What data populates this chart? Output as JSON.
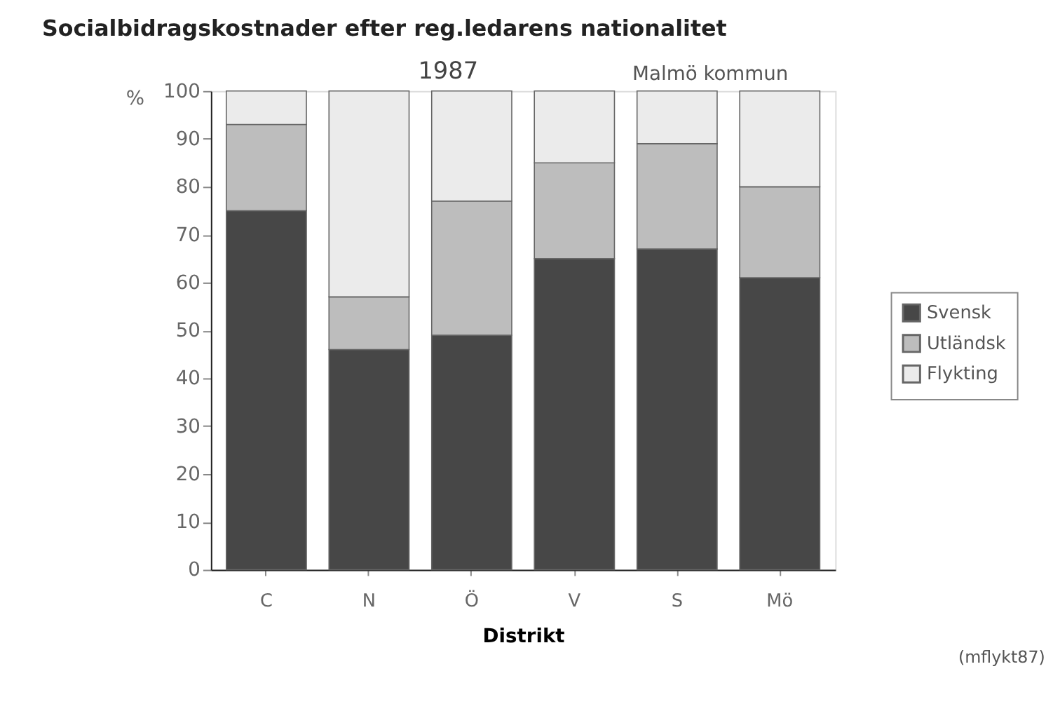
{
  "chart_data": {
    "type": "bar",
    "stacked": true,
    "title": "Socialbidragskostnader efter reg.ledarens nationalitet",
    "subtitle": "1987",
    "xlabel": "Distrikt",
    "ylabel": "%",
    "categories": [
      "C",
      "N",
      "Ö",
      "V",
      "S",
      "Mö"
    ],
    "series": [
      {
        "name": "Svensk",
        "color": "#474747",
        "values": [
          75,
          46,
          49,
          65,
          67,
          61
        ]
      },
      {
        "name": "Utländsk",
        "color": "#bdbdbd",
        "values": [
          18,
          11,
          28,
          20,
          22,
          19
        ]
      },
      {
        "name": "Flykting",
        "color": "#ebebeb",
        "values": [
          7,
          43,
          23,
          15,
          11,
          20
        ]
      }
    ],
    "ylim": [
      0,
      100
    ],
    "yticks": [
      0,
      10,
      20,
      30,
      40,
      50,
      60,
      70,
      80,
      90,
      100
    ],
    "legend": "right",
    "annotations": [
      "Malmö kommun",
      "(mflykt87)"
    ]
  }
}
